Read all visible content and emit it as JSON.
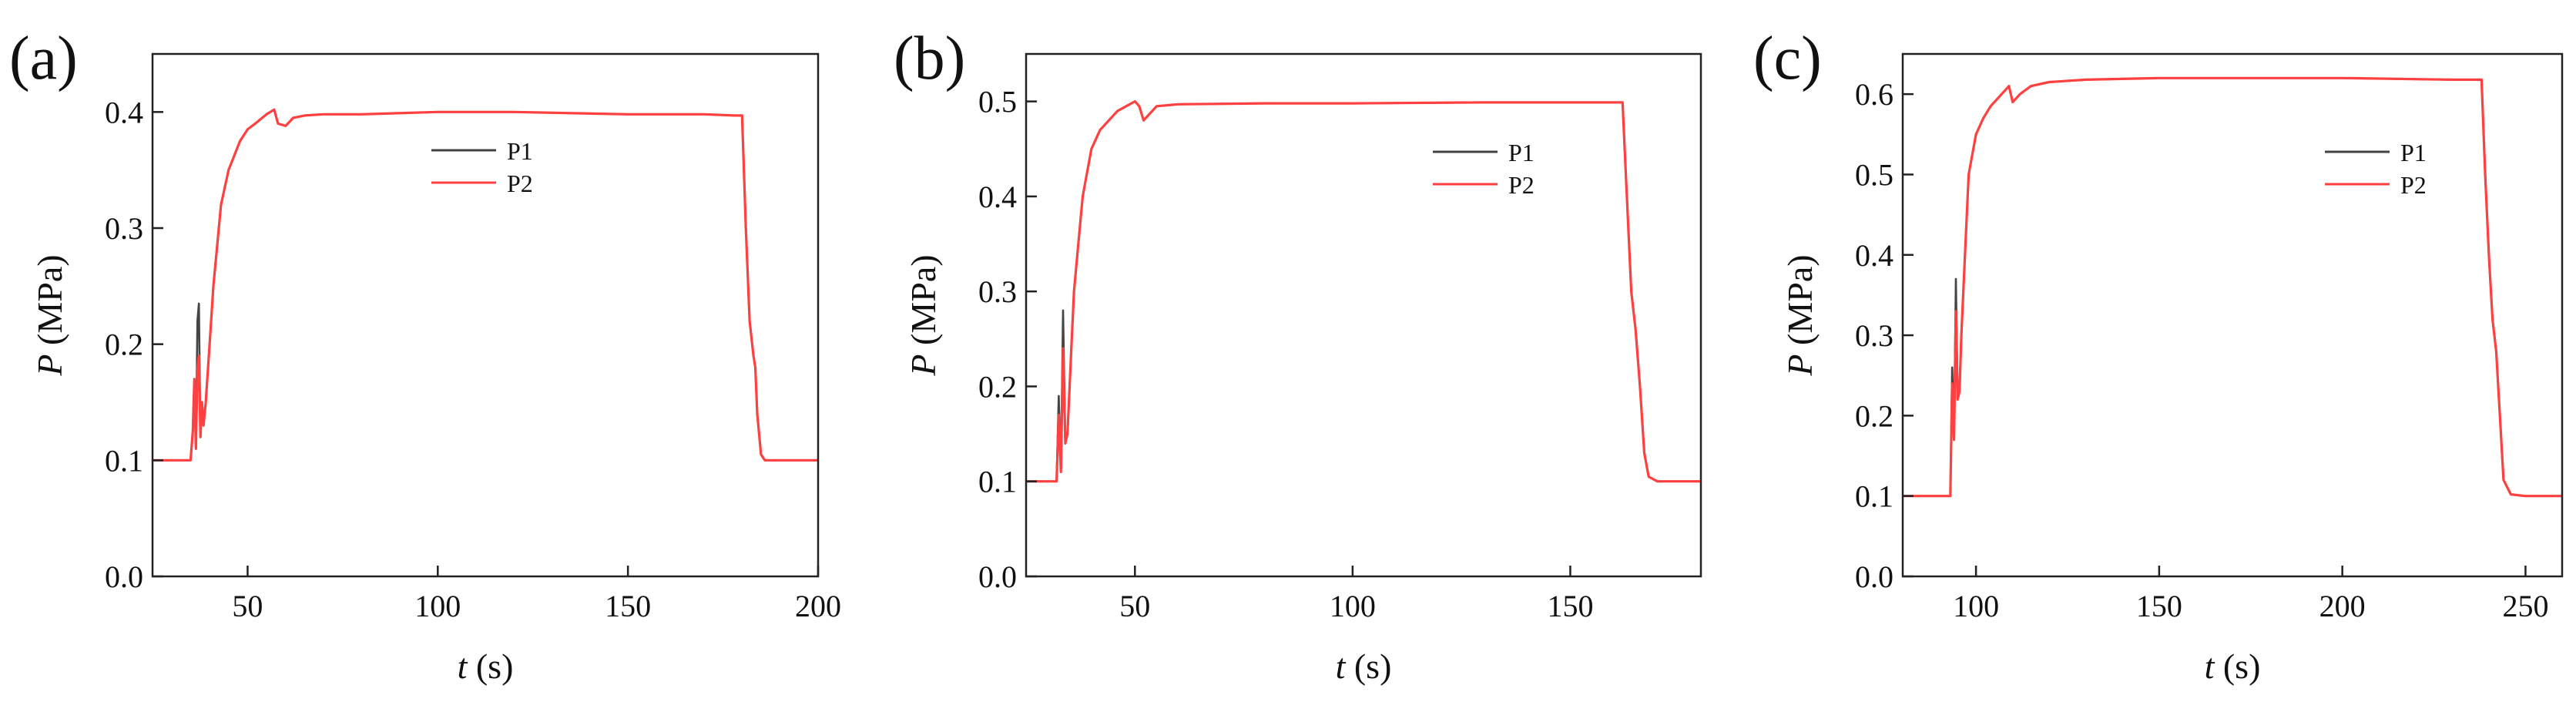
{
  "chart_data": [
    {
      "type": "line",
      "panel_label": "(a)",
      "xlabel_symbol": "t",
      "xlabel_unit": " (s)",
      "ylabel_symbol": "P",
      "ylabel_unit": " (MPa)",
      "xlim": [
        25,
        200
      ],
      "ylim": [
        0,
        0.45
      ],
      "xticks": [
        50,
        100,
        150,
        200
      ],
      "yticks": [
        0.0,
        0.1,
        0.2,
        0.3,
        0.4
      ],
      "tick_format_decimals": 1,
      "legend_position": "upper-middle",
      "colors": {
        "P1": "#444444",
        "P2": "#ff4040"
      },
      "series": [
        {
          "name": "P1",
          "x": [
            25,
            35,
            35.6,
            36.0,
            36.4,
            36.8,
            37.2,
            37.6,
            38.0,
            38.4,
            39,
            40,
            41,
            43,
            45,
            48,
            50,
            52,
            55,
            57,
            58,
            60,
            62,
            65,
            70,
            80,
            100,
            120,
            150,
            170,
            178,
            180,
            181,
            182,
            183,
            183.5,
            184,
            185,
            186,
            190,
            200
          ],
          "y": [
            0.1,
            0.1,
            0.125,
            0.17,
            0.11,
            0.22,
            0.235,
            0.12,
            0.15,
            0.13,
            0.15,
            0.2,
            0.25,
            0.32,
            0.35,
            0.375,
            0.385,
            0.39,
            0.398,
            0.402,
            0.39,
            0.388,
            0.395,
            0.397,
            0.398,
            0.398,
            0.4,
            0.4,
            0.398,
            0.398,
            0.397,
            0.397,
            0.3,
            0.22,
            0.19,
            0.18,
            0.14,
            0.105,
            0.1,
            0.1,
            0.1
          ]
        },
        {
          "name": "P2",
          "x": [
            25,
            35,
            35.6,
            36.0,
            36.4,
            36.8,
            37.2,
            37.6,
            38.0,
            38.4,
            39,
            40,
            41,
            43,
            45,
            48,
            50,
            52,
            55,
            57,
            58,
            60,
            62,
            65,
            70,
            80,
            100,
            120,
            150,
            170,
            178,
            180,
            181,
            182,
            183,
            183.5,
            184,
            185,
            186,
            190,
            200
          ],
          "y": [
            0.1,
            0.1,
            0.125,
            0.17,
            0.11,
            0.18,
            0.19,
            0.12,
            0.15,
            0.13,
            0.15,
            0.2,
            0.25,
            0.32,
            0.35,
            0.375,
            0.385,
            0.39,
            0.398,
            0.402,
            0.39,
            0.388,
            0.395,
            0.397,
            0.398,
            0.398,
            0.4,
            0.4,
            0.398,
            0.398,
            0.397,
            0.397,
            0.3,
            0.22,
            0.19,
            0.18,
            0.14,
            0.105,
            0.1,
            0.1,
            0.1
          ]
        }
      ]
    },
    {
      "type": "line",
      "panel_label": "(b)",
      "xlabel_symbol": "t",
      "xlabel_unit": " (s)",
      "ylabel_symbol": "P",
      "ylabel_unit": " (MPa)",
      "xlim": [
        25,
        180
      ],
      "ylim": [
        0,
        0.55
      ],
      "xticks": [
        50,
        100,
        150
      ],
      "yticks": [
        0.0,
        0.1,
        0.2,
        0.3,
        0.4,
        0.5
      ],
      "tick_format_decimals": 1,
      "legend_position": "upper-right",
      "colors": {
        "P1": "#444444",
        "P2": "#ff4040"
      },
      "series": [
        {
          "name": "P1",
          "x": [
            25,
            32,
            32.5,
            33.0,
            33.5,
            34.0,
            34.5,
            35.0,
            35.5,
            36,
            37,
            38,
            40,
            42,
            44,
            46,
            48,
            50,
            51,
            52,
            53,
            55,
            60,
            80,
            100,
            130,
            160,
            162,
            163,
            164,
            165,
            166,
            167,
            168,
            170,
            180
          ],
          "y": [
            0.1,
            0.1,
            0.19,
            0.11,
            0.28,
            0.14,
            0.15,
            0.2,
            0.25,
            0.3,
            0.35,
            0.4,
            0.45,
            0.47,
            0.48,
            0.49,
            0.495,
            0.5,
            0.495,
            0.48,
            0.485,
            0.495,
            0.497,
            0.498,
            0.498,
            0.499,
            0.499,
            0.499,
            0.4,
            0.3,
            0.26,
            0.2,
            0.13,
            0.105,
            0.1,
            0.1
          ]
        },
        {
          "name": "P2",
          "x": [
            25,
            32,
            32.5,
            33.0,
            33.5,
            34.0,
            34.5,
            35.0,
            35.5,
            36,
            37,
            38,
            40,
            42,
            44,
            46,
            48,
            50,
            51,
            52,
            53,
            55,
            60,
            80,
            100,
            130,
            160,
            162,
            163,
            164,
            165,
            166,
            167,
            168,
            170,
            180
          ],
          "y": [
            0.1,
            0.1,
            0.17,
            0.11,
            0.24,
            0.14,
            0.15,
            0.2,
            0.25,
            0.3,
            0.35,
            0.4,
            0.45,
            0.47,
            0.48,
            0.49,
            0.495,
            0.5,
            0.495,
            0.48,
            0.485,
            0.495,
            0.497,
            0.498,
            0.498,
            0.499,
            0.499,
            0.499,
            0.4,
            0.3,
            0.26,
            0.2,
            0.13,
            0.105,
            0.1,
            0.1
          ]
        }
      ]
    },
    {
      "type": "line",
      "panel_label": "(c)",
      "xlabel_symbol": "t",
      "xlabel_unit": " (s)",
      "ylabel_symbol": "P",
      "ylabel_unit": " (MPa)",
      "xlim": [
        80,
        260
      ],
      "ylim": [
        0,
        0.65
      ],
      "xticks": [
        100,
        150,
        200,
        250
      ],
      "yticks": [
        0.0,
        0.1,
        0.2,
        0.3,
        0.4,
        0.5,
        0.6
      ],
      "tick_format_decimals": 1,
      "legend_position": "upper-right",
      "colors": {
        "P1": "#444444",
        "P2": "#ff4040"
      },
      "series": [
        {
          "name": "P1",
          "x": [
            80,
            93,
            93.5,
            94.0,
            94.5,
            95.0,
            95.5,
            96.0,
            97,
            98,
            100,
            102,
            104,
            106,
            108,
            109,
            110,
            112,
            115,
            120,
            130,
            150,
            200,
            230,
            238,
            239,
            240,
            241,
            242,
            243,
            244,
            246,
            250,
            260
          ],
          "y": [
            0.1,
            0.1,
            0.26,
            0.17,
            0.37,
            0.22,
            0.23,
            0.3,
            0.4,
            0.5,
            0.55,
            0.57,
            0.585,
            0.595,
            0.605,
            0.61,
            0.59,
            0.6,
            0.61,
            0.615,
            0.618,
            0.62,
            0.62,
            0.618,
            0.618,
            0.5,
            0.4,
            0.32,
            0.28,
            0.2,
            0.12,
            0.102,
            0.1,
            0.1
          ]
        },
        {
          "name": "P2",
          "x": [
            80,
            93,
            93.5,
            94.0,
            94.5,
            95.0,
            95.5,
            96.0,
            97,
            98,
            100,
            102,
            104,
            106,
            108,
            109,
            110,
            112,
            115,
            120,
            130,
            150,
            200,
            230,
            238,
            239,
            240,
            241,
            242,
            243,
            244,
            246,
            250,
            260
          ],
          "y": [
            0.1,
            0.1,
            0.24,
            0.17,
            0.33,
            0.22,
            0.23,
            0.3,
            0.4,
            0.5,
            0.55,
            0.57,
            0.585,
            0.595,
            0.605,
            0.61,
            0.59,
            0.6,
            0.61,
            0.615,
            0.618,
            0.62,
            0.62,
            0.618,
            0.618,
            0.5,
            0.4,
            0.32,
            0.28,
            0.2,
            0.12,
            0.102,
            0.1,
            0.1
          ]
        }
      ]
    }
  ]
}
